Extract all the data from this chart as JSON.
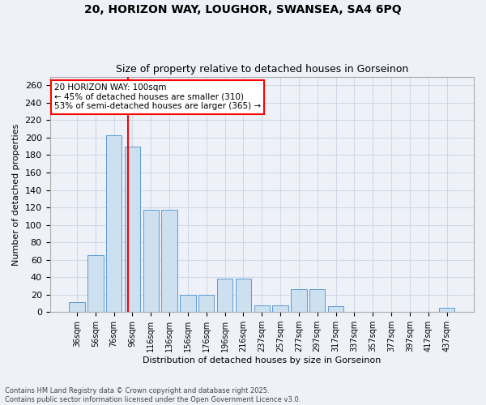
{
  "title_line1": "20, HORIZON WAY, LOUGHOR, SWANSEA, SA4 6PQ",
  "title_line2": "Size of property relative to detached houses in Gorseinon",
  "xlabel": "Distribution of detached houses by size in Gorseinon",
  "ylabel": "Number of detached properties",
  "footnote": "Contains HM Land Registry data © Crown copyright and database right 2025.\nContains public sector information licensed under the Open Government Licence v3.0.",
  "categories": [
    "36sqm",
    "56sqm",
    "76sqm",
    "96sqm",
    "116sqm",
    "136sqm",
    "156sqm",
    "176sqm",
    "196sqm",
    "216sqm",
    "237sqm",
    "257sqm",
    "277sqm",
    "297sqm",
    "317sqm",
    "337sqm",
    "357sqm",
    "377sqm",
    "397sqm",
    "417sqm",
    "437sqm"
  ],
  "values": [
    11,
    65,
    203,
    190,
    117,
    117,
    20,
    20,
    38,
    38,
    8,
    8,
    26,
    26,
    7,
    0,
    0,
    0,
    0,
    0,
    5
  ],
  "bar_color": "#cce0f0",
  "bar_edge_color": "#5b9bd5",
  "grid_color": "#d0d8e8",
  "background_color": "#eef2f8",
  "vline_color": "red",
  "annotation_text": "20 HORIZON WAY: 100sqm\n← 45% of detached houses are smaller (310)\n53% of semi-detached houses are larger (365) →",
  "annotation_box_color": "white",
  "annotation_box_edge": "red",
  "ylim": [
    0,
    270
  ],
  "yticks": [
    0,
    20,
    40,
    60,
    80,
    100,
    120,
    140,
    160,
    180,
    200,
    220,
    240,
    260
  ]
}
